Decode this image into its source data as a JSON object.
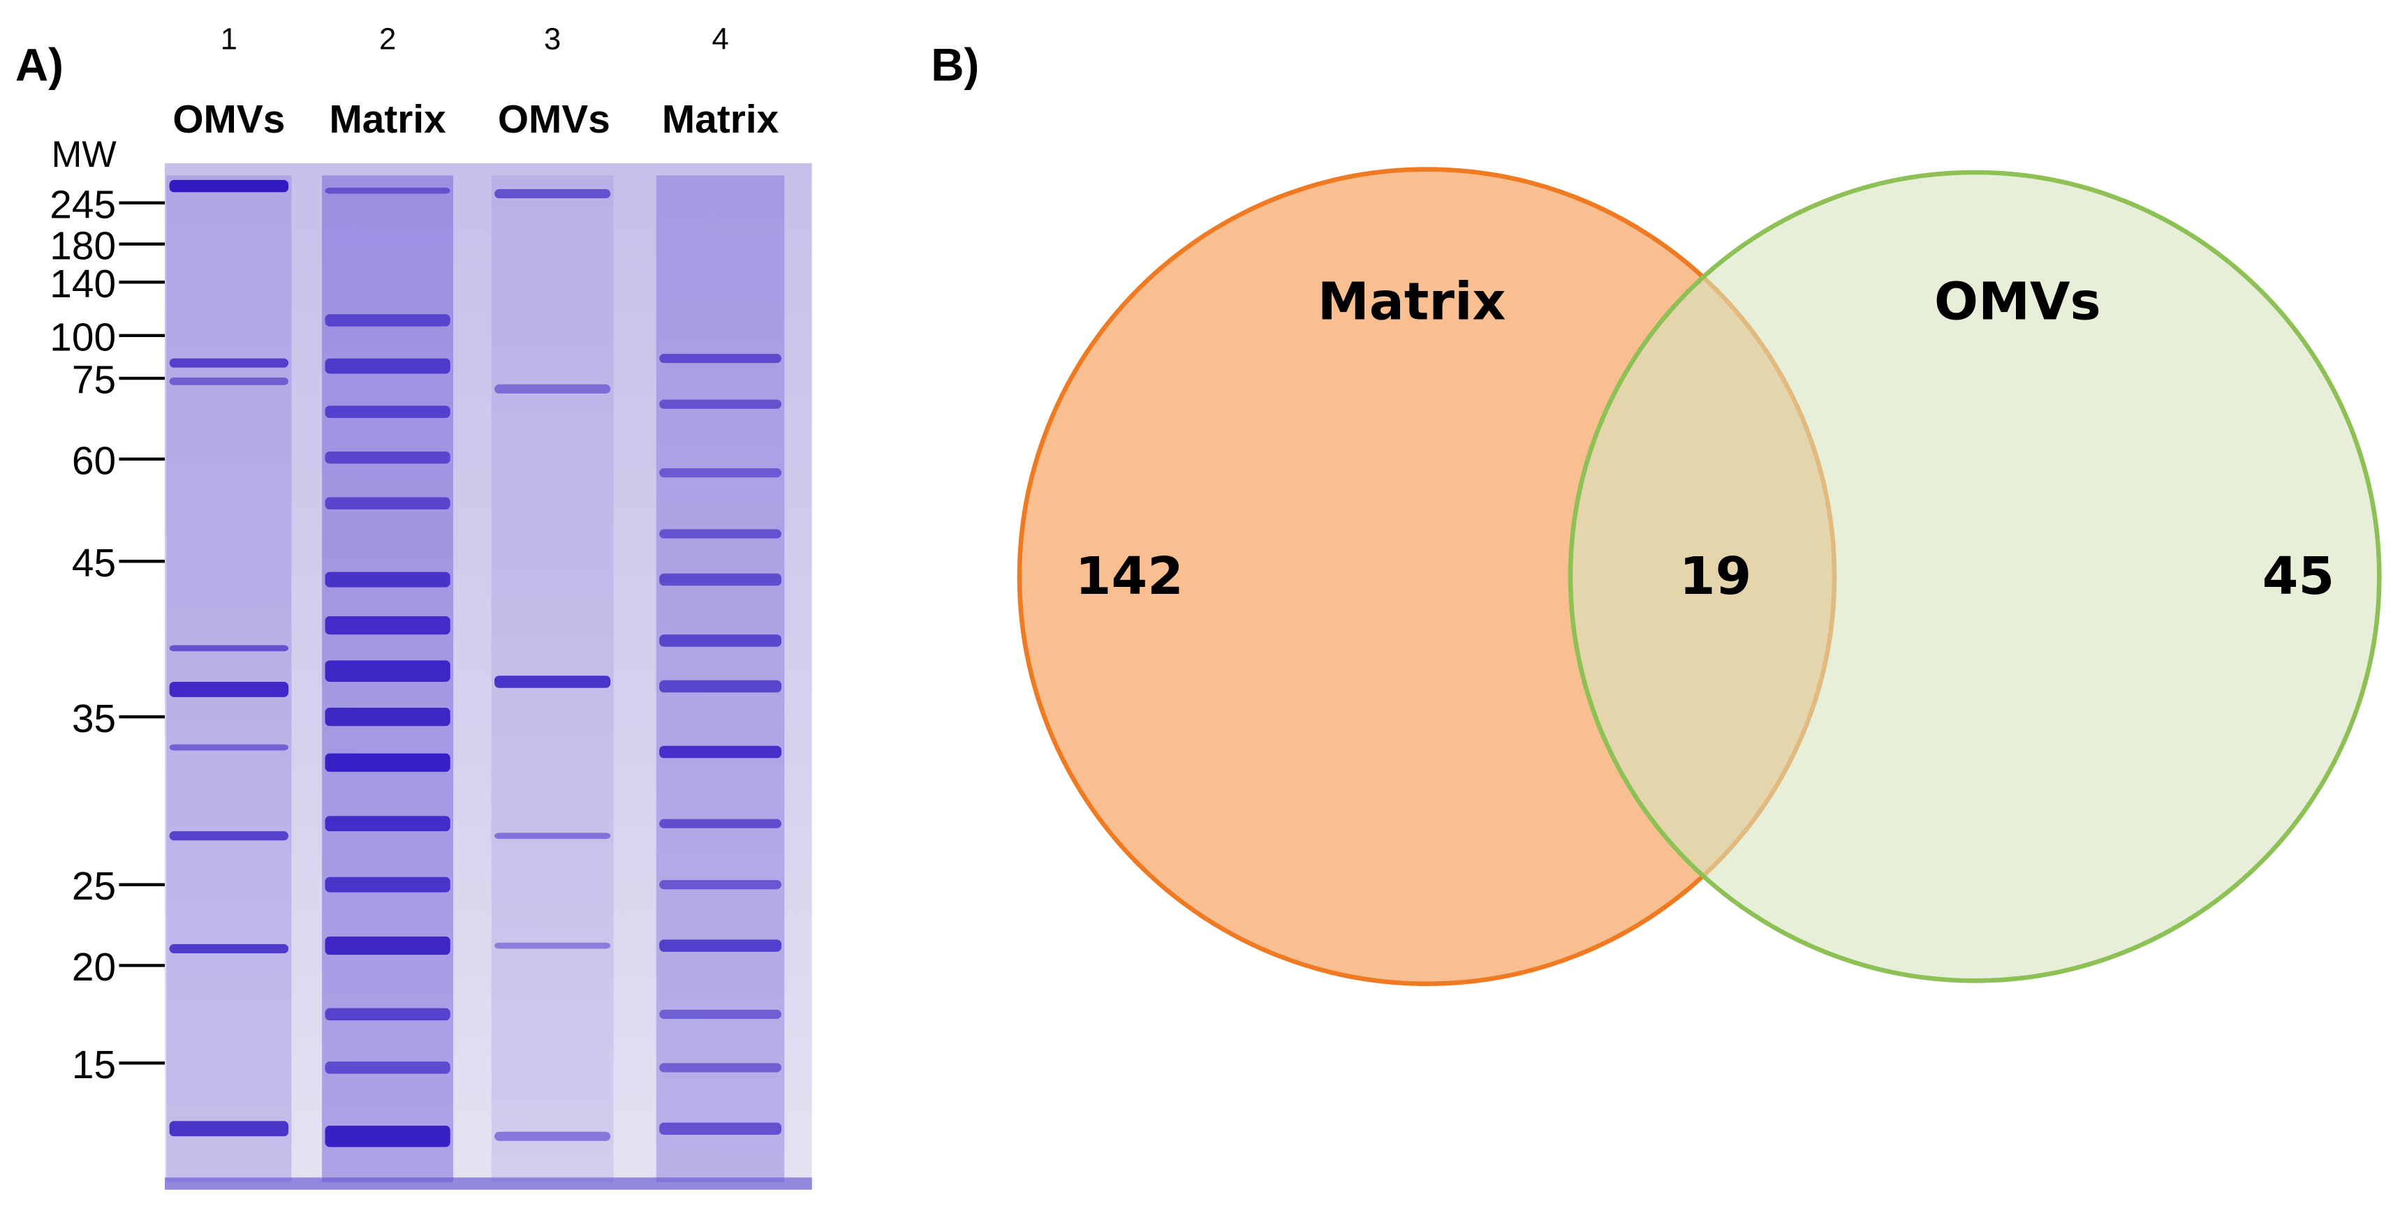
{
  "panel_a": {
    "label": "A)",
    "mw_label": "MW",
    "lanes": [
      {
        "number": "1",
        "label": "OMVs"
      },
      {
        "number": "2",
        "label": "Matrix"
      },
      {
        "number": "3",
        "label": "OMVs"
      },
      {
        "number": "4",
        "label": "Matrix"
      }
    ],
    "markers": [
      "245",
      "180",
      "140",
      "100",
      "75",
      "60",
      "45",
      "35",
      "25",
      "20",
      "15"
    ]
  },
  "panel_b": {
    "label": "B)",
    "sets": [
      {
        "name": "Matrix",
        "count": "142"
      },
      {
        "name": "OMVs",
        "count": "45"
      }
    ],
    "intersection": "19"
  }
}
